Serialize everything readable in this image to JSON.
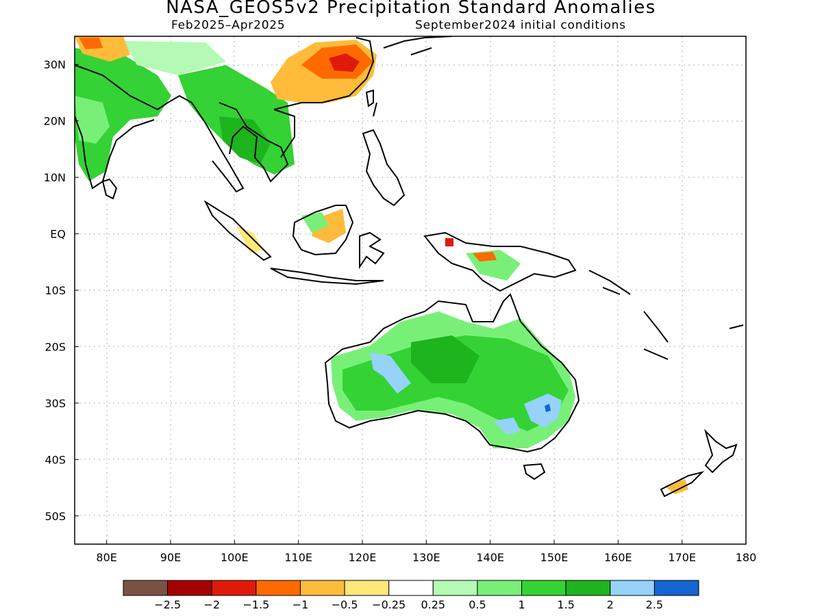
{
  "header": {
    "title": "NASA_GEOS5v2 Precipitation Standard Anomalies",
    "subtitle_left": "Feb2025–Apr2025",
    "subtitle_right": "September2024 initial conditions"
  },
  "map": {
    "lon_range": [
      75,
      180
    ],
    "lat_range": [
      -55,
      35
    ],
    "lat_labels": [
      "30N",
      "20N",
      "10N",
      "EQ",
      "10S",
      "20S",
      "30S",
      "40S",
      "50S"
    ],
    "lat_values": [
      30,
      20,
      10,
      0,
      -10,
      -20,
      -30,
      -40,
      -50
    ],
    "lon_labels": [
      "80E",
      "90E",
      "100E",
      "110E",
      "120E",
      "130E",
      "140E",
      "150E",
      "160E",
      "170E",
      "180"
    ],
    "lon_values": [
      80,
      90,
      100,
      110,
      120,
      130,
      140,
      150,
      160,
      170,
      180
    ]
  },
  "colorbar": {
    "colors": [
      "#7a5244",
      "#a50000",
      "#e01a0a",
      "#ff6a00",
      "#ffbb3a",
      "#ffe87a",
      "#ffffff",
      "#b4fab4",
      "#78f078",
      "#34d234",
      "#1eb41e",
      "#96d2fa",
      "#1464d2"
    ],
    "labels": [
      "−2.5",
      "−2",
      "−1.5",
      "−1",
      "−0.5",
      "−0.25",
      "0.25",
      "0.5",
      "1",
      "1.5",
      "2",
      "2.5"
    ]
  }
}
